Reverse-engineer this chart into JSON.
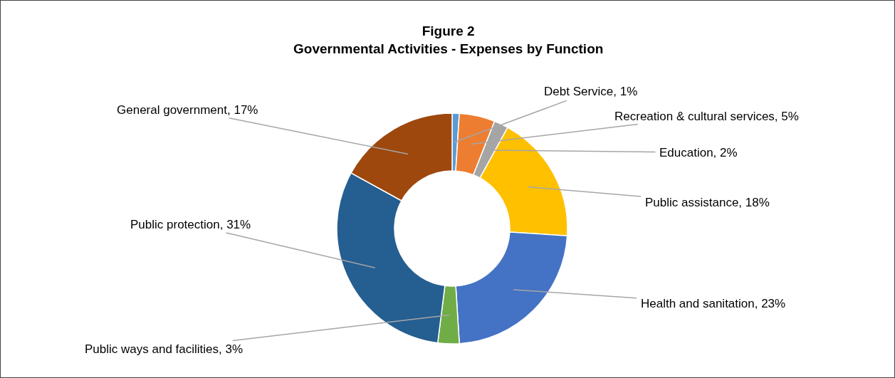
{
  "chart_data": {
    "type": "donut",
    "title": "Figure 2",
    "subtitle": "Governmental Activities - Expenses by Function",
    "categories": [
      "Debt Service",
      "Recreation & cultural services",
      "Education",
      "Public assistance",
      "Health and sanitation",
      "Public ways and facilities",
      "Public protection",
      "General government"
    ],
    "values": [
      1,
      5,
      2,
      18,
      23,
      3,
      31,
      17
    ],
    "value_labels": [
      "1%",
      "5%",
      "2%",
      "18%",
      "23%",
      "3%",
      "31%",
      "17%"
    ],
    "colors": [
      "#5b9bd5",
      "#ed7d31",
      "#a5a5a5",
      "#ffc000",
      "#4472c4",
      "#70ad47",
      "#255e91",
      "#9e480e"
    ],
    "legend": false
  }
}
